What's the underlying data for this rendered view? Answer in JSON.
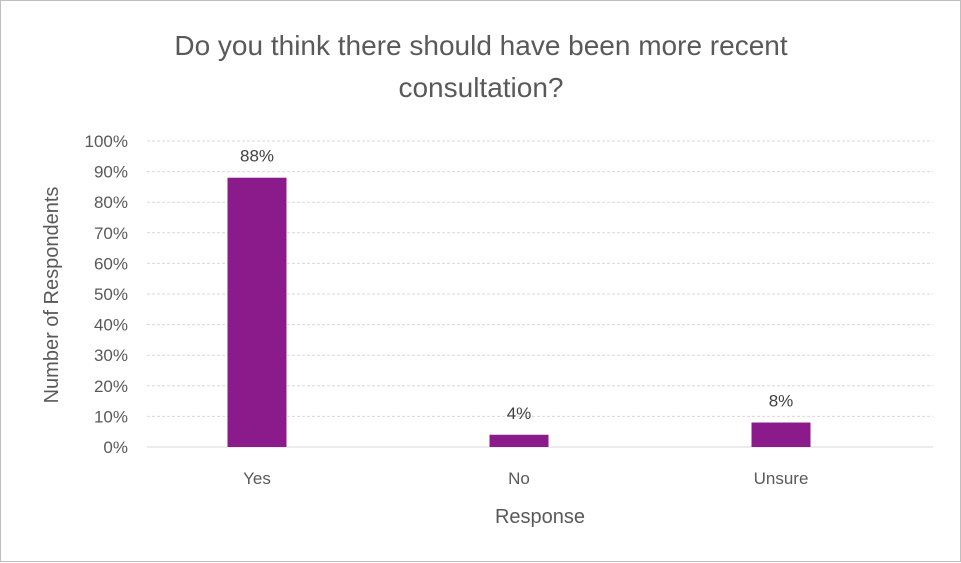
{
  "chart_data": {
    "type": "bar",
    "title_lines": [
      "Do you think there should have been more recent",
      "consultation?"
    ],
    "categories": [
      "Yes",
      "No",
      "Unsure"
    ],
    "values": [
      88,
      4,
      8
    ],
    "data_labels": [
      "88%",
      "4%",
      "8%"
    ],
    "xlabel": "Response",
    "ylabel": "Number of Respondents",
    "ylim": [
      0,
      100
    ],
    "yticks": [
      "0%",
      "10%",
      "20%",
      "30%",
      "40%",
      "50%",
      "60%",
      "70%",
      "80%",
      "90%",
      "100%"
    ],
    "bar_color": "#8B1A8B",
    "grid": true,
    "legend": "none"
  }
}
